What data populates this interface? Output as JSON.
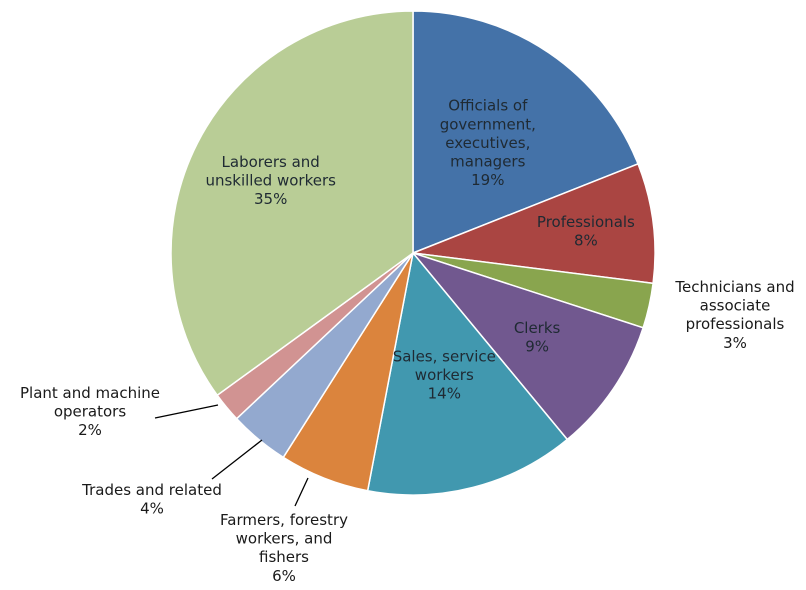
{
  "chart_data": {
    "type": "pie",
    "start_angle_deg": 0,
    "direction": "clockwise",
    "slices": [
      {
        "label": [
          "Officials of",
          "government,",
          "executives,",
          "managers"
        ],
        "value": 19,
        "value_label": "19%",
        "color": "#4472a8",
        "label_placement": "inside"
      },
      {
        "label": [
          "Professionals"
        ],
        "value": 8,
        "value_label": "8%",
        "color": "#aa4542",
        "label_placement": "inside"
      },
      {
        "label": [
          "Technicians and",
          "associate",
          "professionals"
        ],
        "value": 3,
        "value_label": "3%",
        "color": "#89a54e",
        "label_placement": "outside"
      },
      {
        "label": [
          "Clerks"
        ],
        "value": 9,
        "value_label": "9%",
        "color": "#71588f",
        "label_placement": "inside"
      },
      {
        "label": [
          "Sales, service",
          "workers"
        ],
        "value": 14,
        "value_label": "14%",
        "color": "#4198af",
        "label_placement": "inside"
      },
      {
        "label": [
          "Farmers, forestry",
          "workers,  and",
          "fishers"
        ],
        "value": 6,
        "value_label": "6%",
        "color": "#db843d",
        "label_placement": "outside"
      },
      {
        "label": [
          "Trades and related"
        ],
        "value": 4,
        "value_label": "4%",
        "color": "#93a9cf",
        "label_placement": "outside"
      },
      {
        "label": [
          "Plant and machine",
          "operators"
        ],
        "value": 2,
        "value_label": "2%",
        "color": "#d19392",
        "label_placement": "outside"
      },
      {
        "label": [
          "Laborers and",
          "unskilled workers"
        ],
        "value": 35,
        "value_label": "35%",
        "color": "#b9cd96",
        "label_placement": "inside"
      }
    ],
    "legend": "none"
  }
}
